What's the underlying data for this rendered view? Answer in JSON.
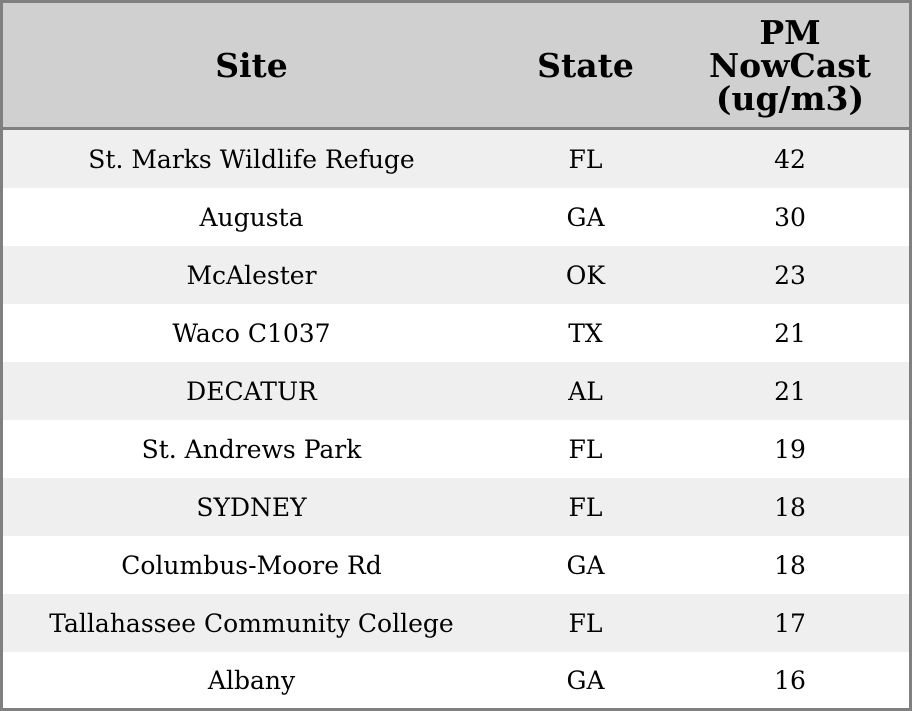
{
  "chart_data": {
    "type": "table",
    "columns": [
      "Site",
      "State",
      "PM NowCast (ug/m3)"
    ],
    "header_lines": [
      [
        "Site"
      ],
      [
        "State"
      ],
      [
        "PM",
        "NowCast",
        "(ug/m3)"
      ]
    ],
    "rows": [
      {
        "site": "St. Marks Wildlife Refuge",
        "state": "FL",
        "pm": "42"
      },
      {
        "site": "Augusta",
        "state": "GA",
        "pm": "30"
      },
      {
        "site": "McAlester",
        "state": "OK",
        "pm": "23"
      },
      {
        "site": "Waco C1037",
        "state": "TX",
        "pm": "21"
      },
      {
        "site": "DECATUR",
        "state": "AL",
        "pm": "21"
      },
      {
        "site": "St. Andrews Park",
        "state": "FL",
        "pm": "19"
      },
      {
        "site": "SYDNEY",
        "state": "FL",
        "pm": "18"
      },
      {
        "site": "Columbus-Moore Rd",
        "state": "GA",
        "pm": "18"
      },
      {
        "site": "Tallahassee Community College",
        "state": "FL",
        "pm": "17"
      },
      {
        "site": "Albany",
        "state": "GA",
        "pm": "16"
      }
    ]
  },
  "colors": {
    "header_background": "#d0d0d0",
    "row_alternate": "#efefef",
    "row_plain": "#ffffff",
    "border": "#808080",
    "text": "#000000"
  }
}
